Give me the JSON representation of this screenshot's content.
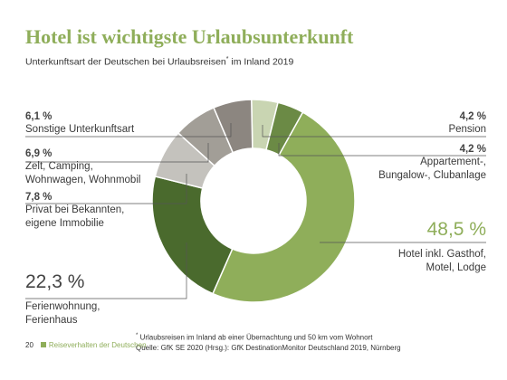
{
  "title": "Hotel ist wichtigste Urlaubsunterkunft",
  "subtitle": "Unterkunftsart der Deutschen bei Urlaubsreisen",
  "subtitle_mark": "*",
  "subtitle_suffix": " im Inland 2019",
  "chart_data": {
    "type": "pie",
    "donut": true,
    "unit": "%",
    "series": [
      {
        "label": "Hotel inkl. Gasthof, Motel, Lodge",
        "value": 48.5,
        "color": "#8fae5a"
      },
      {
        "label": "Ferienwohnung, Ferienhaus",
        "value": 22.3,
        "color": "#4a6a2d"
      },
      {
        "label": "Privat bei Bekannten, eigene Immobilie",
        "value": 7.8,
        "color": "#c4c2bd"
      },
      {
        "label": "Zelt, Camping, Wohnwagen, Wohnmobil",
        "value": 6.9,
        "color": "#a29e97"
      },
      {
        "label": "Sonstige Unterkunftsart",
        "value": 6.1,
        "color": "#8c8680"
      },
      {
        "label": "Pension",
        "value": 4.2,
        "color": "#c9d5b2"
      },
      {
        "label": "Appartement-, Bungalow-, Clubanlage",
        "value": 4.2,
        "color": "#6b8a45"
      }
    ]
  },
  "labels": {
    "sonstige": {
      "pct": "6,1 %",
      "l1": "Sonstige Unterkunftsart"
    },
    "zelt": {
      "pct": "6,9 %",
      "l1": "Zelt, Camping,",
      "l2": "Wohnwagen, Wohnmobil"
    },
    "privat": {
      "pct": "7,8 %",
      "l1": "Privat bei Bekannten,",
      "l2": "eigene Immobilie"
    },
    "ferien": {
      "pct": "22,3 %",
      "l1": "Ferienwohnung,",
      "l2": "Ferienhaus"
    },
    "pension": {
      "pct": "4,2 %",
      "l1": "Pension"
    },
    "appartement": {
      "pct": "4,2 %",
      "l1": "Appartement-,",
      "l2": "Bungalow-, Clubanlage"
    },
    "hotel": {
      "pct": "48,5 %",
      "l1": "Hotel inkl. Gasthof,",
      "l2": "Motel, Lodge"
    }
  },
  "footnote": {
    "mark": "*",
    "line1": " Urlaubsreisen im Inland ab einer Übernachtung und 50 km vom Wohnort",
    "line2": "Quelle: GfK SE 2020 (Hrsg.): GfK DestinationMonitor Deutschland 2019, Nürnberg"
  },
  "page": {
    "number": "20",
    "section": "Reiseverhalten der Deutschen"
  }
}
